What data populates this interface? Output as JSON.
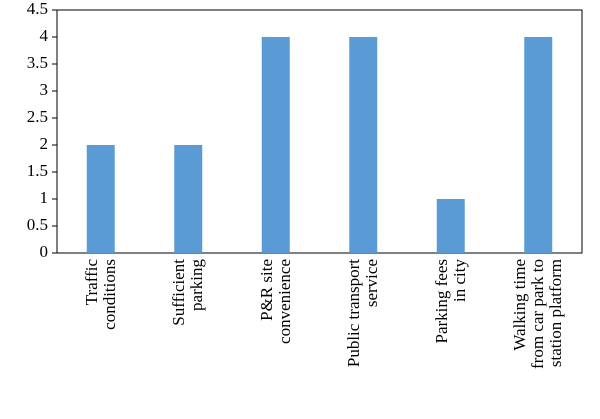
{
  "chart_data": {
    "type": "bar",
    "categories": [
      "Traffic\nconditions",
      "Sufficient\nparking",
      "P&R site\nconvenience",
      "Public transport\nservice",
      "Parking fees\nin city",
      "Walking time\nfrom car park to\nstation platform"
    ],
    "values": [
      2,
      2,
      4,
      4,
      1,
      4
    ],
    "color": "#5b9bd5",
    "ylim": [
      0,
      4.5
    ],
    "yticks": [
      0,
      0.5,
      1,
      1.5,
      2,
      2.5,
      3,
      3.5,
      4,
      4.5
    ],
    "grid": false
  }
}
